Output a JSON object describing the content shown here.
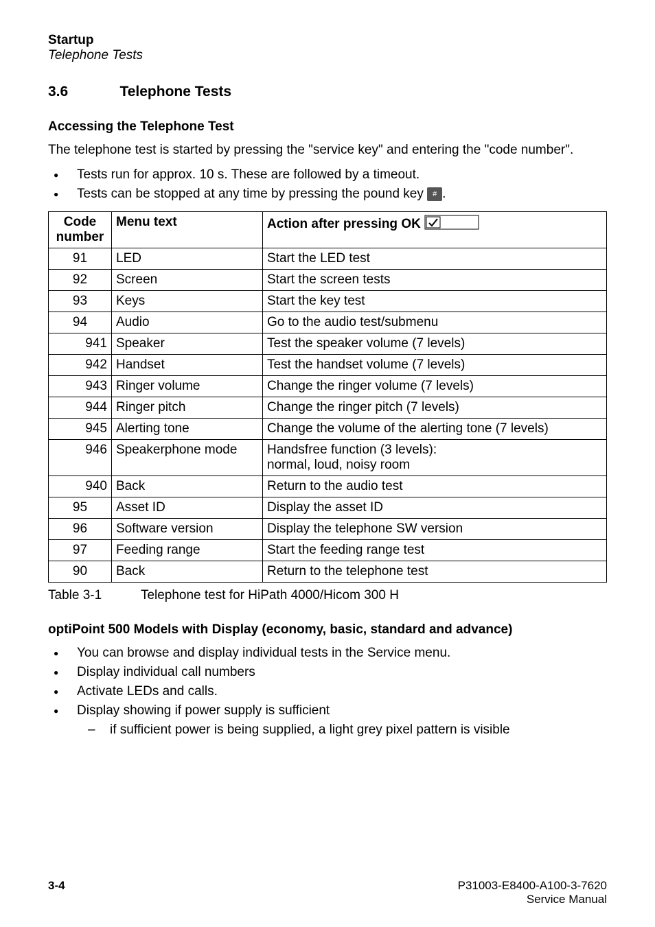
{
  "header": {
    "title": "Startup",
    "subtitle": "Telephone Tests"
  },
  "section": {
    "number": "3.6",
    "title": "Telephone Tests"
  },
  "access": {
    "heading": "Accessing the Telephone Test",
    "intro": "The telephone test is started by pressing the \"service key\" and entering the \"code number\".",
    "bullets": [
      "Tests run for approx. 10 s. These are followed by a timeout.",
      "Tests can be stopped at any time by pressing the pound key"
    ],
    "pound_glyph": "#"
  },
  "table": {
    "headers": {
      "code": "Code number",
      "menu": "Menu text",
      "action_prefix": "Action after pressing OK"
    },
    "rows": [
      {
        "code": "91",
        "align": "center",
        "menu": "LED",
        "action": "Start the LED test"
      },
      {
        "code": "92",
        "align": "center",
        "menu": "Screen",
        "action": "Start the screen tests"
      },
      {
        "code": "93",
        "align": "center",
        "menu": "Keys",
        "action": "Start the key test"
      },
      {
        "code": "94",
        "align": "center",
        "menu": "Audio",
        "action": "Go to the audio test/submenu"
      },
      {
        "code": "941",
        "align": "right",
        "menu": "Speaker",
        "action": "Test the speaker volume (7 levels)"
      },
      {
        "code": "942",
        "align": "right",
        "menu": "Handset",
        "action": "Test the handset volume (7 levels)"
      },
      {
        "code": "943",
        "align": "right",
        "menu": "Ringer volume",
        "action": "Change the ringer volume (7 levels)"
      },
      {
        "code": "944",
        "align": "right",
        "menu": "Ringer pitch",
        "action": "Change the ringer pitch (7 levels)"
      },
      {
        "code": "945",
        "align": "right",
        "menu": "Alerting tone",
        "action": "Change the volume of the alerting tone (7 levels)"
      },
      {
        "code": "946",
        "align": "right",
        "menu": "Speakerphone mode",
        "action": "Handsfree function (3 levels):\nnormal, loud, noisy room"
      },
      {
        "code": "940",
        "align": "right",
        "menu": "Back",
        "action": "Return to the audio test"
      },
      {
        "code": "95",
        "align": "center",
        "menu": "Asset ID",
        "action": "Display the asset ID"
      },
      {
        "code": "96",
        "align": "center",
        "menu": "Software version",
        "action": "Display the telephone SW version"
      },
      {
        "code": "97",
        "align": "center",
        "menu": "Feeding range",
        "action": "Start the feeding range test"
      },
      {
        "code": "90",
        "align": "center",
        "menu": "Back",
        "action": "Return to the telephone test"
      }
    ],
    "caption_label": "Table 3-1",
    "caption_text": "Telephone test for HiPath 4000/Hicom 300 H"
  },
  "models": {
    "heading": "optiPoint 500 Models with Display (economy, basic, standard and advance)",
    "bullets": [
      {
        "text": "You can browse and display individual tests in the Service menu."
      },
      {
        "text": "Display individual call numbers"
      },
      {
        "text": "Activate LEDs and calls."
      },
      {
        "text": "Display showing if power supply is sufficient",
        "sub": [
          "if sufficient power is being supplied, a light grey pixel pattern is visible"
        ]
      }
    ]
  },
  "footer": {
    "page": "3-4",
    "doc_id": "P31003-E8400-A100-3-7620",
    "doc_type": "Service Manual"
  },
  "ok_key_svg": {
    "width": 80,
    "height": 22,
    "fill_outer": "#ffffff",
    "stroke": "#000000",
    "check_color": "#000000"
  }
}
